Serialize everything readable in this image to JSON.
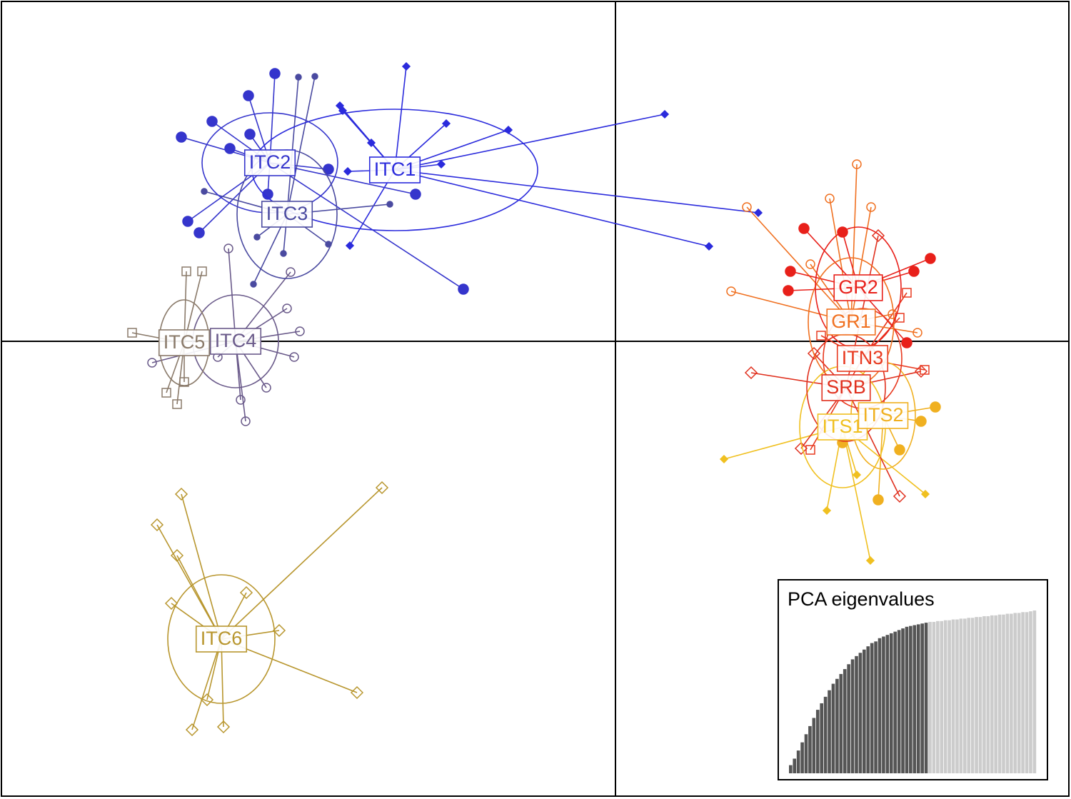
{
  "chart_data": {
    "type": "scatter",
    "xlim": [
      -8.6,
      6.35
    ],
    "ylim": [
      -6.37,
      4.76
    ],
    "groups": [
      {
        "name": "ITC1",
        "color": "#2b2bdc",
        "marker": "diamond-filled",
        "centroid": [
          -3.09,
          2.4
        ],
        "ellipse": [
          2.0,
          0.85
        ],
        "points": [
          [
            -2.93,
            3.85
          ],
          [
            0.69,
            3.18
          ],
          [
            -2.37,
            3.05
          ],
          [
            -1.5,
            2.96
          ],
          [
            -3.86,
            3.3
          ],
          [
            2.0,
            1.8
          ],
          [
            1.31,
            1.33
          ],
          [
            -3.72,
            1.34
          ],
          [
            -2.44,
            2.48
          ],
          [
            -3.75,
            2.38
          ],
          [
            -3.82,
            3.23
          ],
          [
            -3.42,
            2.78
          ]
        ]
      },
      {
        "name": "ITC2",
        "color": "#3535cc",
        "marker": "circle-filled",
        "centroid": [
          -4.84,
          2.5
        ],
        "ellipse": [
          0.95,
          0.7
        ],
        "points": [
          [
            -4.77,
            3.75
          ],
          [
            -5.14,
            3.44
          ],
          [
            -6.08,
            2.86
          ],
          [
            -5.65,
            3.08
          ],
          [
            -5.4,
            2.7
          ],
          [
            -5.12,
            2.9
          ],
          [
            -5.99,
            1.68
          ],
          [
            -5.83,
            1.52
          ],
          [
            -2.13,
            0.73
          ],
          [
            -2.8,
            2.06
          ],
          [
            -4.02,
            2.41
          ],
          [
            -4.87,
            2.06
          ]
        ]
      },
      {
        "name": "ITC3",
        "color": "#4a4aa0",
        "marker": "circle-small",
        "centroid": [
          -4.6,
          1.78
        ],
        "ellipse": [
          0.7,
          0.9
        ],
        "points": [
          [
            -4.44,
            3.7
          ],
          [
            -4.21,
            3.71
          ],
          [
            -3.16,
            1.92
          ],
          [
            -5.76,
            2.1
          ],
          [
            -4.02,
            1.36
          ],
          [
            -4.65,
            1.23
          ],
          [
            -5.02,
            1.46
          ],
          [
            -5.07,
            0.8
          ]
        ]
      },
      {
        "name": "ITC4",
        "color": "#6a5a8a",
        "marker": "circle-open",
        "centroid": [
          -5.32,
          0.0
        ],
        "ellipse": [
          0.6,
          0.65
        ],
        "points": [
          [
            -4.42,
            0.14
          ],
          [
            -4.6,
            0.46
          ],
          [
            -4.55,
            0.97
          ],
          [
            -5.18,
            -1.12
          ],
          [
            -4.89,
            -0.65
          ],
          [
            -6.49,
            -0.3
          ],
          [
            -5.42,
            1.3
          ],
          [
            -5.57,
            -0.22
          ],
          [
            -4.5,
            -0.22
          ],
          [
            -5.25,
            -0.82
          ]
        ]
      },
      {
        "name": "ITC5",
        "color": "#8a7a6a",
        "marker": "square-open",
        "centroid": [
          -6.04,
          -0.02
        ],
        "ellipse": [
          0.35,
          0.6
        ],
        "points": [
          [
            -6.77,
            0.12
          ],
          [
            -6.01,
            0.98
          ],
          [
            -6.29,
            -0.72
          ],
          [
            -6.14,
            -0.88
          ],
          [
            -5.79,
            0.98
          ],
          [
            -6.04,
            -0.57
          ]
        ]
      },
      {
        "name": "ITC6",
        "color": "#b8962e",
        "marker": "diamond-open",
        "centroid": [
          -5.52,
          -4.17
        ],
        "ellipse": [
          0.75,
          0.9
        ],
        "points": [
          [
            -3.27,
            -2.05
          ],
          [
            -6.08,
            -2.14
          ],
          [
            -6.42,
            -2.57
          ],
          [
            -6.14,
            -3.0
          ],
          [
            -3.62,
            -4.92
          ],
          [
            -5.93,
            -5.44
          ],
          [
            -5.49,
            -5.4
          ],
          [
            -4.71,
            -4.05
          ],
          [
            -5.17,
            -3.52
          ],
          [
            -6.22,
            -3.67
          ],
          [
            -5.72,
            -5.02
          ]
        ]
      },
      {
        "name": "ITS1",
        "color": "#f0c020",
        "marker": "diamond-filled",
        "centroid": [
          3.18,
          -1.2
        ],
        "ellipse": [
          0.6,
          0.85
        ],
        "points": [
          [
            1.52,
            -1.65
          ],
          [
            3.57,
            -3.07
          ],
          [
            2.96,
            -2.37
          ],
          [
            4.34,
            -2.14
          ],
          [
            3.38,
            -1.87
          ]
        ]
      },
      {
        "name": "ITS2",
        "color": "#f0b020",
        "marker": "circle-filled",
        "centroid": [
          3.75,
          -1.04
        ],
        "ellipse": [
          0.45,
          0.75
        ],
        "points": [
          [
            4.48,
            -0.92
          ],
          [
            3.98,
            -1.52
          ],
          [
            3.68,
            -2.22
          ],
          [
            3.18,
            -1.42
          ],
          [
            4.28,
            -1.12
          ]
        ]
      },
      {
        "name": "SRB",
        "color": "#e0301e",
        "marker": "diamond-open",
        "centroid": [
          3.23,
          -0.65
        ],
        "ellipse": [
          0.55,
          0.75
        ],
        "points": [
          [
            1.9,
            -0.44
          ],
          [
            2.6,
            -1.5
          ],
          [
            2.78,
            -0.17
          ],
          [
            4.28,
            -0.42
          ],
          [
            3.98,
            -2.17
          ],
          [
            3.68,
            1.48
          ]
        ]
      },
      {
        "name": "ITN3",
        "color": "#e83a20",
        "marker": "square-open",
        "centroid": [
          3.46,
          -0.24
        ],
        "ellipse": [
          0.55,
          0.7
        ],
        "points": [
          [
            4.33,
            -0.4
          ],
          [
            3.98,
            0.33
          ],
          [
            2.73,
            -1.52
          ],
          [
            4.08,
            0.68
          ],
          [
            2.88,
            0.08
          ]
        ]
      },
      {
        "name": "GR1",
        "color": "#f07020",
        "marker": "circle-open",
        "centroid": [
          3.3,
          0.27
        ],
        "ellipse": [
          0.6,
          0.9
        ],
        "points": [
          [
            3.38,
            2.48
          ],
          [
            1.84,
            1.88
          ],
          [
            1.62,
            0.7
          ],
          [
            3.0,
            2.0
          ],
          [
            3.58,
            1.88
          ],
          [
            4.23,
            0.12
          ],
          [
            2.73,
            1.08
          ],
          [
            3.88,
            0.38
          ]
        ]
      },
      {
        "name": "GR2",
        "color": "#e8201a",
        "marker": "circle-filled",
        "centroid": [
          3.4,
          0.75
        ],
        "ellipse": [
          0.6,
          0.85
        ],
        "points": [
          [
            2.64,
            1.58
          ],
          [
            2.45,
            0.98
          ],
          [
            4.41,
            1.16
          ],
          [
            4.18,
            0.98
          ],
          [
            2.42,
            0.71
          ],
          [
            4.08,
            -0.02
          ],
          [
            3.18,
            1.53
          ]
        ]
      }
    ],
    "inset": {
      "type": "bar",
      "title": "PCA eigenvalues",
      "ylim": [
        0,
        1
      ],
      "retained": 36,
      "colors": [
        "#555555",
        "#cccccc"
      ],
      "values": [
        0.05,
        0.09,
        0.14,
        0.19,
        0.24,
        0.29,
        0.34,
        0.39,
        0.43,
        0.47,
        0.51,
        0.55,
        0.58,
        0.61,
        0.64,
        0.67,
        0.7,
        0.72,
        0.74,
        0.76,
        0.78,
        0.8,
        0.81,
        0.83,
        0.84,
        0.85,
        0.86,
        0.87,
        0.88,
        0.89,
        0.9,
        0.905,
        0.91,
        0.915,
        0.92,
        0.925,
        0.93,
        0.93,
        0.935,
        0.935,
        0.94,
        0.94,
        0.945,
        0.945,
        0.95,
        0.95,
        0.955,
        0.955,
        0.96,
        0.96,
        0.965,
        0.965,
        0.97,
        0.97,
        0.975,
        0.975,
        0.98,
        0.98,
        0.985,
        0.985,
        0.99,
        0.99,
        0.995,
        1.0
      ]
    }
  }
}
